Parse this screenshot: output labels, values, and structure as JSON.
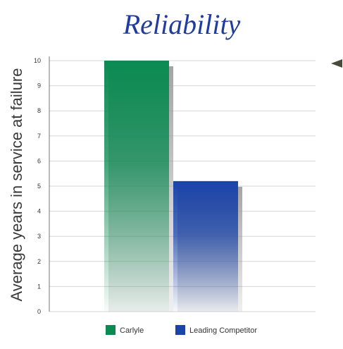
{
  "colors": {
    "title": "#1f3c9e",
    "series_1": "#0b8a52",
    "series_2": "#1b44a8",
    "shadow": "#9a9a9a",
    "marker": "#4a4a38"
  },
  "chart_data": {
    "type": "bar",
    "title": "Reliability",
    "ylabel": "Average years in service at failure",
    "xlabel": "",
    "ylim": [
      0,
      10
    ],
    "yticks": [
      0,
      1,
      2,
      3,
      4,
      5,
      6,
      7,
      8,
      9,
      10
    ],
    "grid": true,
    "legend_position": "bottom",
    "series": [
      {
        "name": "Carlyle",
        "value": 10.0,
        "color": "#0b8a52",
        "gradient": "vertical-fade-to-white"
      },
      {
        "name": "Leading Competitor",
        "value": 5.2,
        "color": "#1b44a8",
        "gradient": "vertical-fade-to-white"
      }
    ]
  }
}
